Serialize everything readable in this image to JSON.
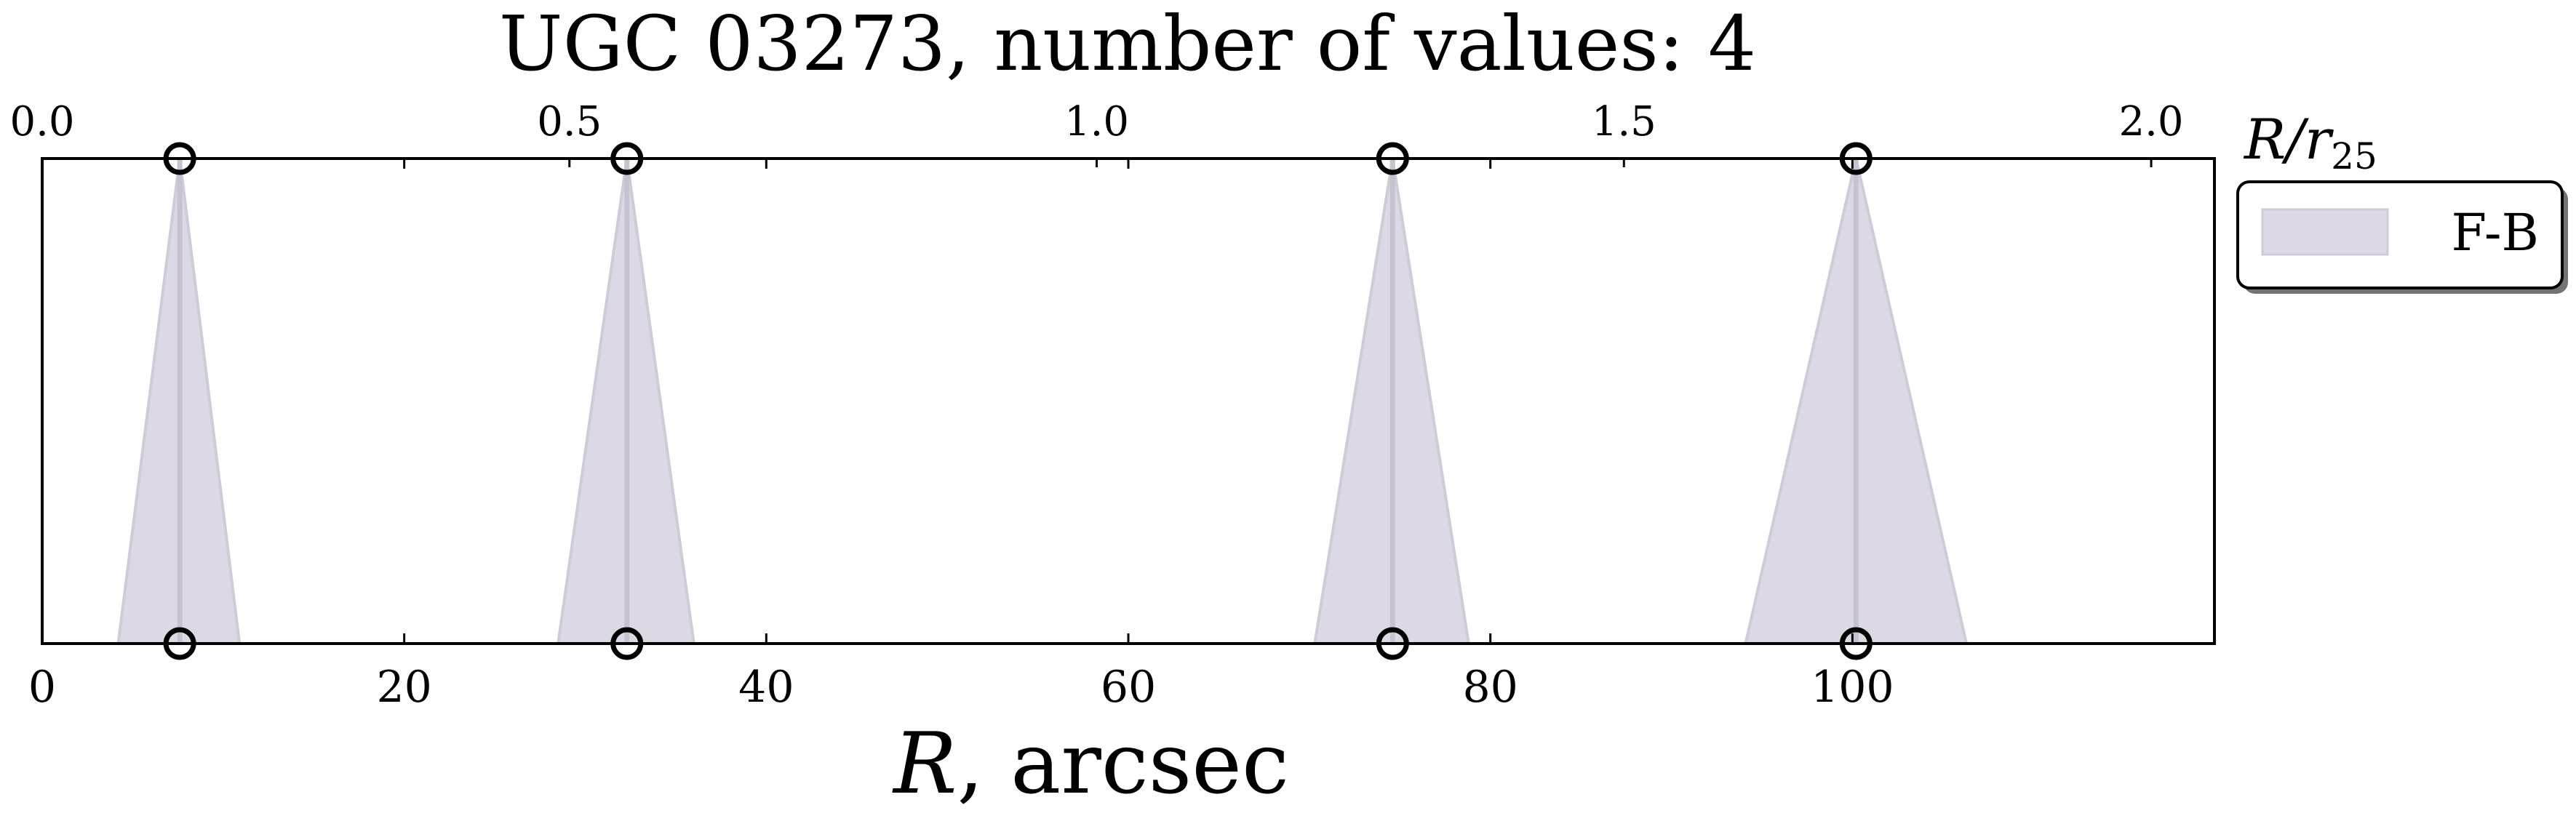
{
  "chart_data": {
    "type": "area",
    "title": "UGC 03273, number of values: 4",
    "xlabel_var": "R",
    "xlabel_unit": ", arcsec",
    "x2label_var": "R/r",
    "x2label_sub": "25",
    "xlim": [
      0,
      120
    ],
    "x2lim": [
      0.0,
      2.06
    ],
    "x_ticks": [
      "0",
      "20",
      "40",
      "60",
      "80",
      "100"
    ],
    "x2_ticks": [
      "0.0",
      "0.5",
      "1.0",
      "1.5",
      "2.0"
    ],
    "x_tick_values": [
      0,
      20,
      40,
      60,
      80,
      100
    ],
    "x2_tick_values": [
      0.0,
      0.5,
      1.0,
      1.5,
      2.0
    ],
    "grid": false,
    "legend_position": "outside-right-top",
    "series": [
      {
        "name": "F-B",
        "color": "#ddd9e4",
        "points": [
          {
            "r": 7.6,
            "r_low": 4.2,
            "r_high": 10.9
          },
          {
            "r": 32.3,
            "r_low": 28.5,
            "r_high": 36.0
          },
          {
            "r": 74.6,
            "r_low": 70.3,
            "r_high": 78.8
          },
          {
            "r": 100.2,
            "r_low": 94.1,
            "r_high": 106.3
          }
        ]
      }
    ]
  },
  "legend": {
    "label": "F-B"
  }
}
